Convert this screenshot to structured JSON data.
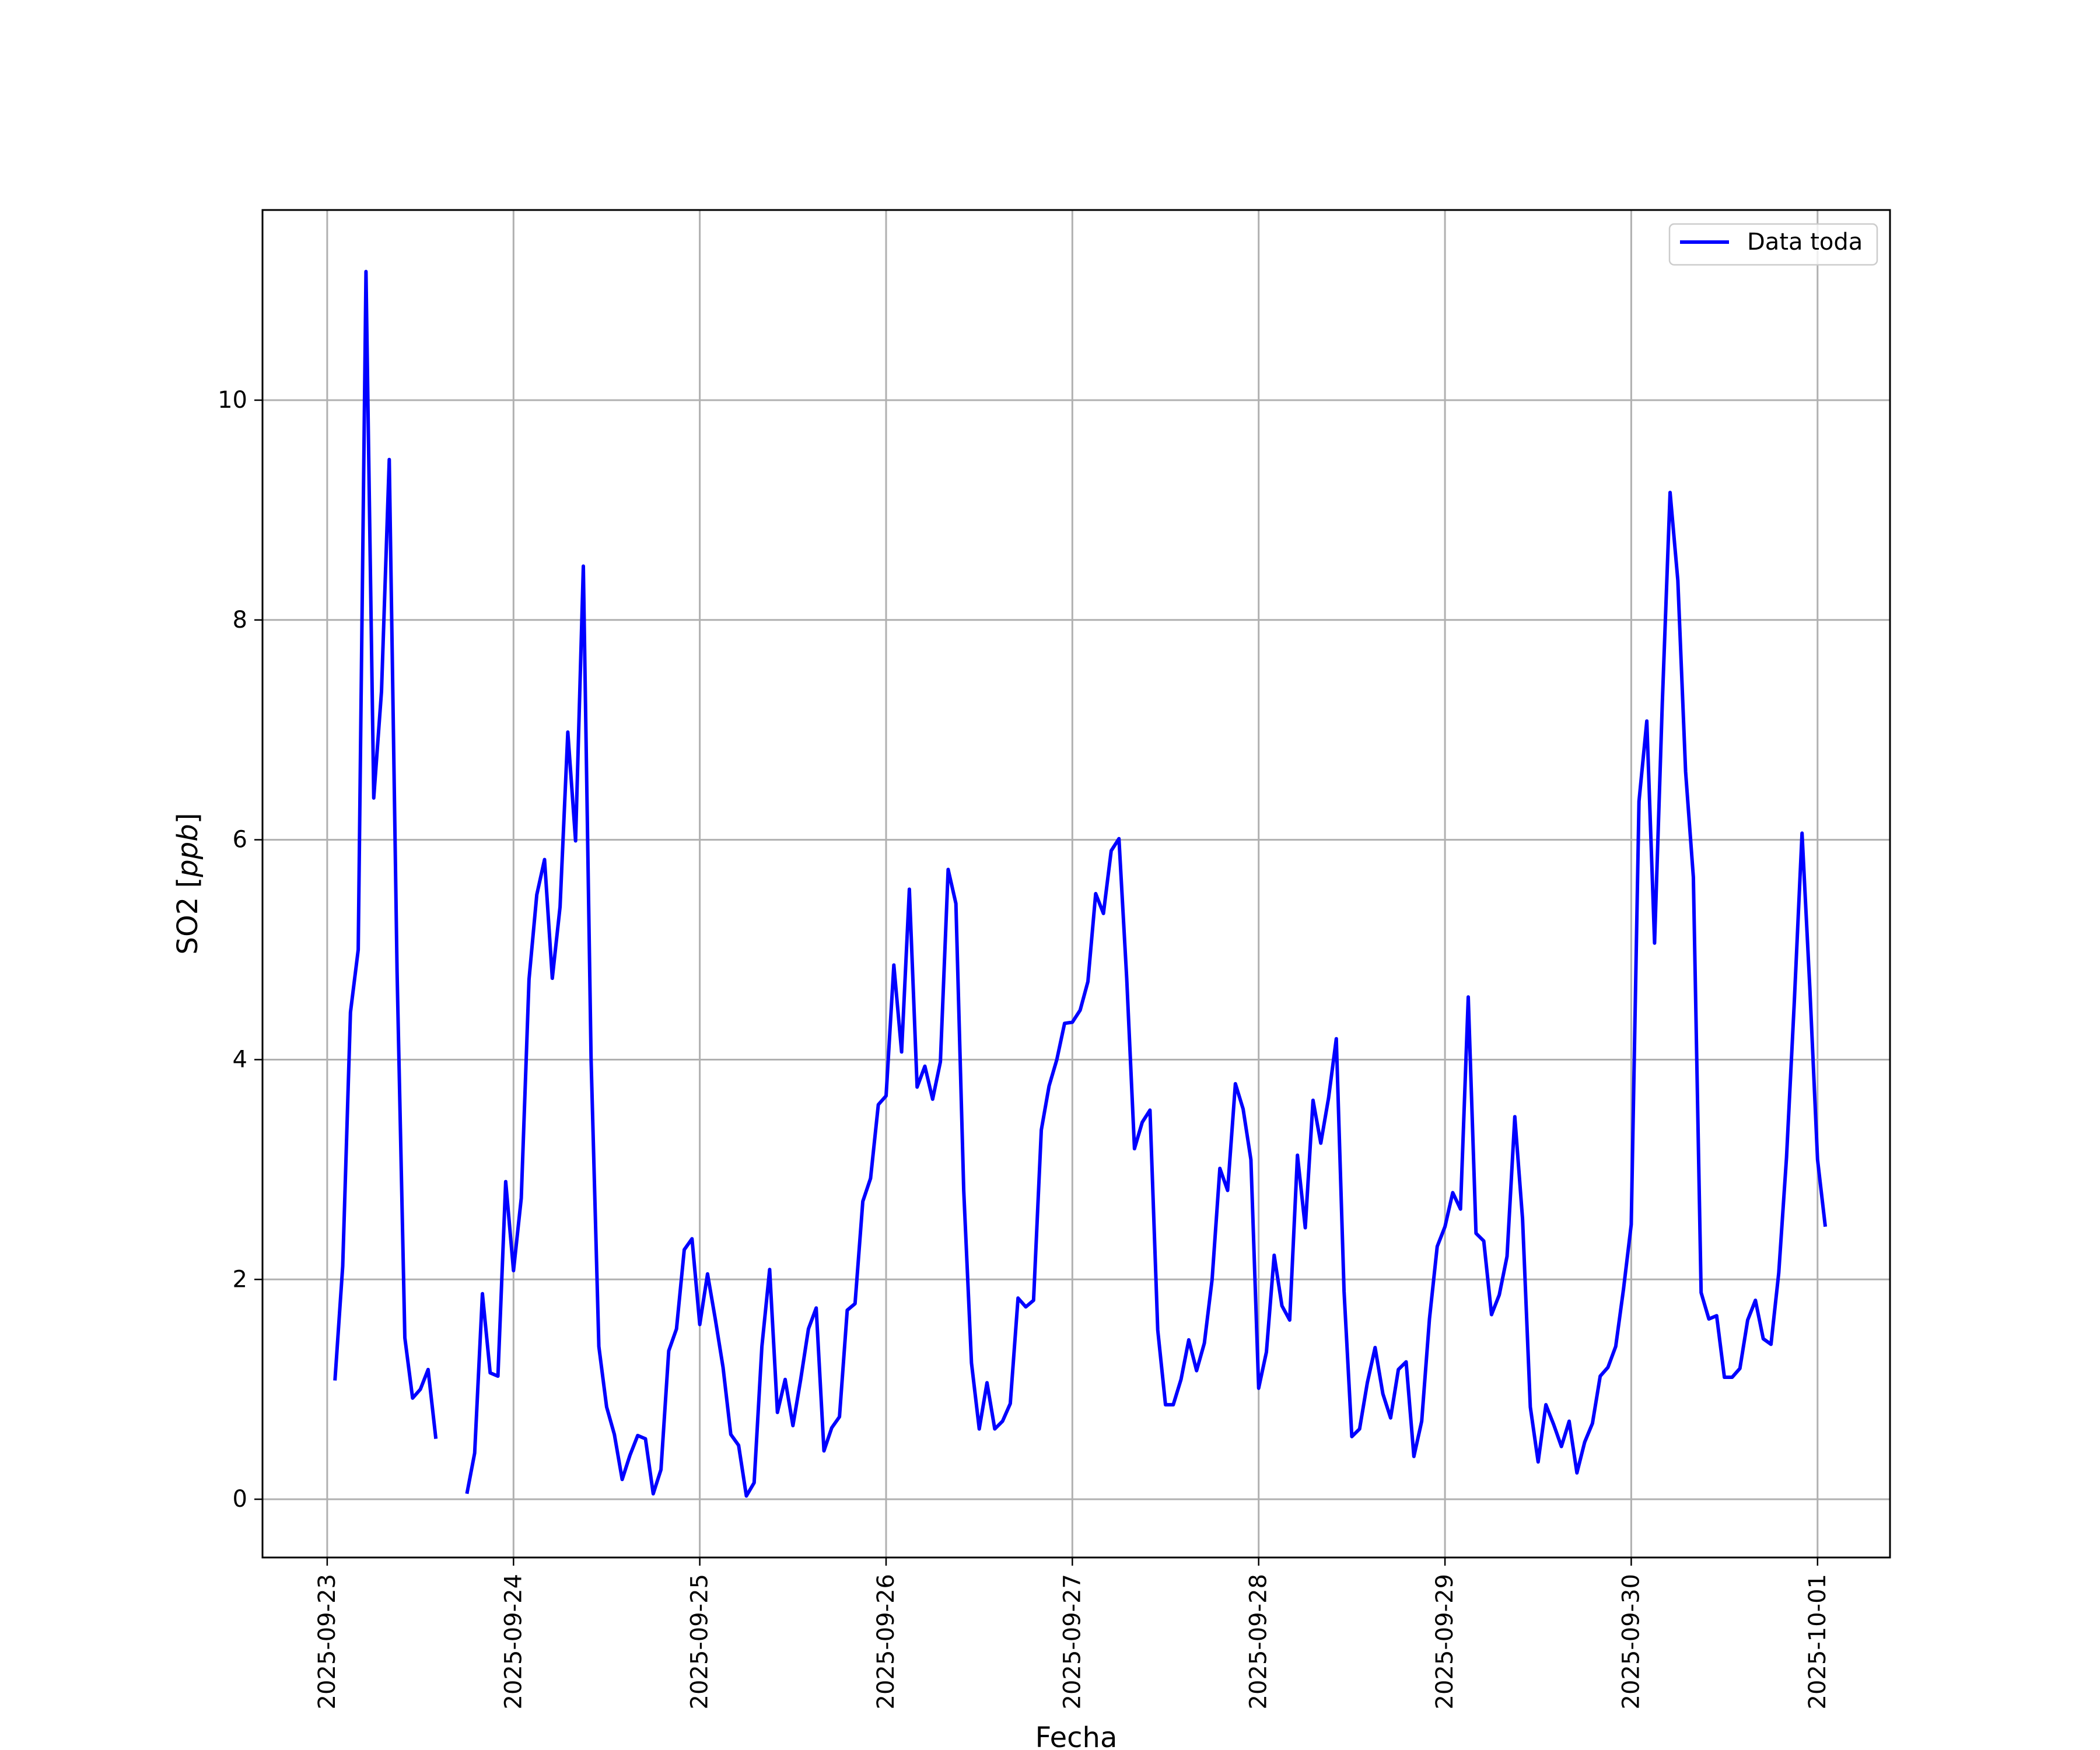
{
  "chart_data": {
    "type": "line",
    "xlabel": "Fecha",
    "ylabel": "SO2 [ppb]",
    "ylabel_main": "SO2 [",
    "ylabel_unit": "ppb",
    "ylabel_close": "]",
    "x_ticks": [
      "2025-09-23",
      "2025-09-24",
      "2025-09-25",
      "2025-09-26",
      "2025-09-27",
      "2025-09-28",
      "2025-09-29",
      "2025-09-30",
      "2025-10-01"
    ],
    "y_ticks": [
      0,
      2,
      4,
      6,
      8,
      10
    ],
    "xlim": [
      "2025-09-22 15:40",
      "2025-10-01 09:20"
    ],
    "ylim": [
      -0.53,
      11.73
    ],
    "grid": true,
    "legend_position": "top-right",
    "colors": {
      "series": "#0000ff"
    },
    "series": [
      {
        "name": "Data toda",
        "start": "2025-09-23 01:00",
        "step_hours": 1,
        "values": [
          1.08,
          2.12,
          4.43,
          5.0,
          11.17,
          6.38,
          7.35,
          9.46,
          4.8,
          1.47,
          0.92,
          1.0,
          1.18,
          0.55,
          null,
          null,
          null,
          0.05,
          0.42,
          1.87,
          1.15,
          1.12,
          2.89,
          2.08,
          2.74,
          4.73,
          5.5,
          5.82,
          4.74,
          5.39,
          6.98,
          5.99,
          8.49,
          4.0,
          1.39,
          0.84,
          0.59,
          0.18,
          0.4,
          0.58,
          0.55,
          0.05,
          0.27,
          1.35,
          1.55,
          2.27,
          2.37,
          1.59,
          2.05,
          1.64,
          1.2,
          0.59,
          0.49,
          0.03,
          0.15,
          1.39,
          2.09,
          0.79,
          1.09,
          0.67,
          1.09,
          1.55,
          1.74,
          0.44,
          0.65,
          0.75,
          1.72,
          1.78,
          2.71,
          2.92,
          3.59,
          3.67,
          4.86,
          4.07,
          5.55,
          3.75,
          3.94,
          3.64,
          3.98,
          5.73,
          5.42,
          2.81,
          1.24,
          0.64,
          1.06,
          0.64,
          0.71,
          0.87,
          1.83,
          1.75,
          1.81,
          3.36,
          3.76,
          4.0,
          4.33,
          4.34,
          4.45,
          4.71,
          5.51,
          5.33,
          5.9,
          6.01,
          4.74,
          3.19,
          3.43,
          3.54,
          1.54,
          0.86,
          0.86,
          1.09,
          1.45,
          1.17,
          1.42,
          2.0,
          3.01,
          2.81,
          3.78,
          3.55,
          3.09,
          1.01,
          1.34,
          2.22,
          1.76,
          1.63,
          3.13,
          2.47,
          3.63,
          3.24,
          3.65,
          4.19,
          1.89,
          0.57,
          0.64,
          1.06,
          1.38,
          0.96,
          0.74,
          1.18,
          1.25,
          0.39,
          0.71,
          1.64,
          2.3,
          2.48,
          2.79,
          2.64,
          4.57,
          2.42,
          2.35,
          1.68,
          1.86,
          2.21,
          3.48,
          2.55,
          0.84,
          0.34,
          0.86,
          0.68,
          0.48,
          0.71,
          0.24,
          0.52,
          0.69,
          1.12,
          1.2,
          1.39,
          1.91,
          2.5,
          6.35,
          7.08,
          5.06,
          7.25,
          9.16,
          8.36,
          6.62,
          5.66,
          1.88,
          1.64,
          1.67,
          1.11,
          1.11,
          1.19,
          1.63,
          1.81,
          1.46,
          1.41,
          2.06,
          3.11,
          4.52,
          6.06,
          4.66,
          3.09,
          2.48
        ]
      }
    ]
  }
}
